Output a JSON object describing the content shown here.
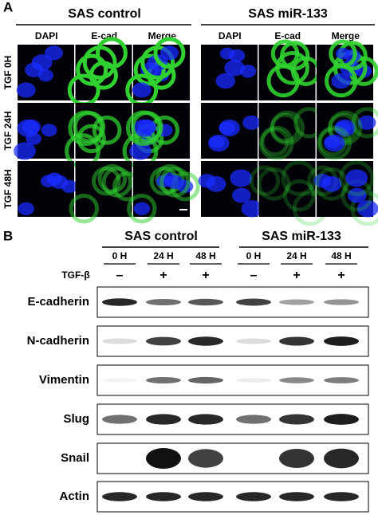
{
  "panel_a": {
    "label": "A",
    "groups": [
      "SAS control",
      "SAS miR-133"
    ],
    "channels": [
      "DAPI",
      "E-cad",
      "Merge"
    ],
    "rows": [
      "TGF 0H",
      "TGF 24H",
      "TGF 48H"
    ]
  },
  "panel_b": {
    "label": "B",
    "groups": [
      "SAS control",
      "SAS miR-133"
    ],
    "timepoints": [
      "0 H",
      "24 H",
      "48 H",
      "0 H",
      "24 H",
      "48 H"
    ],
    "treatment_label": "TGF-β",
    "treatment": [
      "–",
      "+",
      "+",
      "–",
      "+",
      "+"
    ],
    "proteins": [
      "E-cadherin",
      "N-cadherin",
      "Vimentin",
      "Slug",
      "Snail",
      "Actin"
    ]
  }
}
